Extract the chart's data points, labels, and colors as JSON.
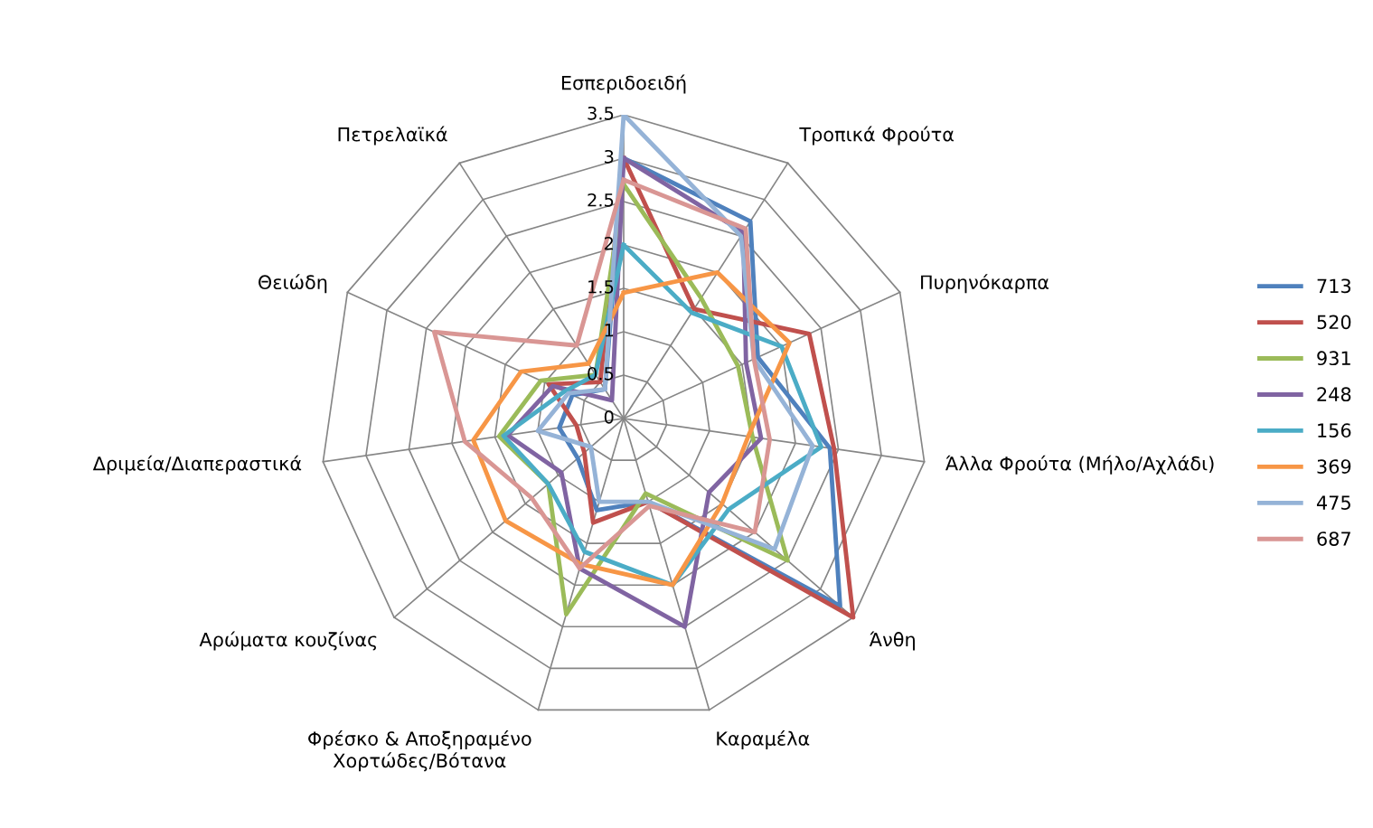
{
  "chart_data": {
    "type": "radar",
    "categories": [
      "Εσπεριδοειδή",
      "Τροπικά Φρούτα",
      "Πυρηνόκαρπα",
      "Άλλα Φρούτα (Μήλο/Αχλάδι)",
      "Άνθη",
      "Καραμέλα",
      "Φρέσκο & Αποξηραμένο\nΧορτώδες/Βότανα",
      "Αρώματα κουζίνας",
      "Δριμεία/Διαπεραστικά",
      "Θειώδη",
      "Πετρελαϊκά"
    ],
    "series": [
      {
        "name": "713",
        "color": "#4f81bd",
        "values": [
          3.0,
          2.7,
          1.7,
          2.4,
          3.3,
          1.0,
          1.1,
          0.7,
          0.75,
          0.65,
          0.4
        ]
      },
      {
        "name": "520",
        "color": "#c0504d",
        "values": [
          3.0,
          1.5,
          2.35,
          2.45,
          3.5,
          1.0,
          1.25,
          0.6,
          0.55,
          0.95,
          0.5
        ]
      },
      {
        "name": "931",
        "color": "#9bbb59",
        "values": [
          2.7,
          1.65,
          1.45,
          1.5,
          2.5,
          0.9,
          2.35,
          1.15,
          1.45,
          1.05,
          0.6
        ]
      },
      {
        "name": "248",
        "color": "#8064a2",
        "values": [
          3.0,
          2.55,
          1.55,
          1.6,
          1.3,
          2.5,
          1.8,
          0.95,
          1.35,
          0.9,
          0.25
        ]
      },
      {
        "name": "156",
        "color": "#4bacc6",
        "values": [
          2.0,
          1.45,
          2.0,
          2.3,
          1.6,
          2.0,
          1.6,
          1.15,
          1.4,
          0.75,
          0.6
        ]
      },
      {
        "name": "369",
        "color": "#f79646",
        "values": [
          1.45,
          2.0,
          2.1,
          1.45,
          1.5,
          2.0,
          1.75,
          1.8,
          1.75,
          1.3,
          0.75
        ]
      },
      {
        "name": "475",
        "color": "#95b3d7",
        "values": [
          3.5,
          2.5,
          1.65,
          2.2,
          2.3,
          1.0,
          1.0,
          0.5,
          1.0,
          0.7,
          0.4
        ]
      },
      {
        "name": "687",
        "color": "#d99694",
        "values": [
          2.75,
          2.6,
          1.65,
          1.7,
          2.0,
          1.05,
          1.8,
          1.4,
          1.85,
          2.4,
          1.0
        ]
      }
    ],
    "ylim": [
      0,
      3.5
    ],
    "yticks": [
      0,
      0.5,
      1,
      1.5,
      2,
      2.5,
      3,
      3.5
    ],
    "grid": true,
    "legend": "right",
    "marker": "none",
    "line_style": "solid"
  }
}
